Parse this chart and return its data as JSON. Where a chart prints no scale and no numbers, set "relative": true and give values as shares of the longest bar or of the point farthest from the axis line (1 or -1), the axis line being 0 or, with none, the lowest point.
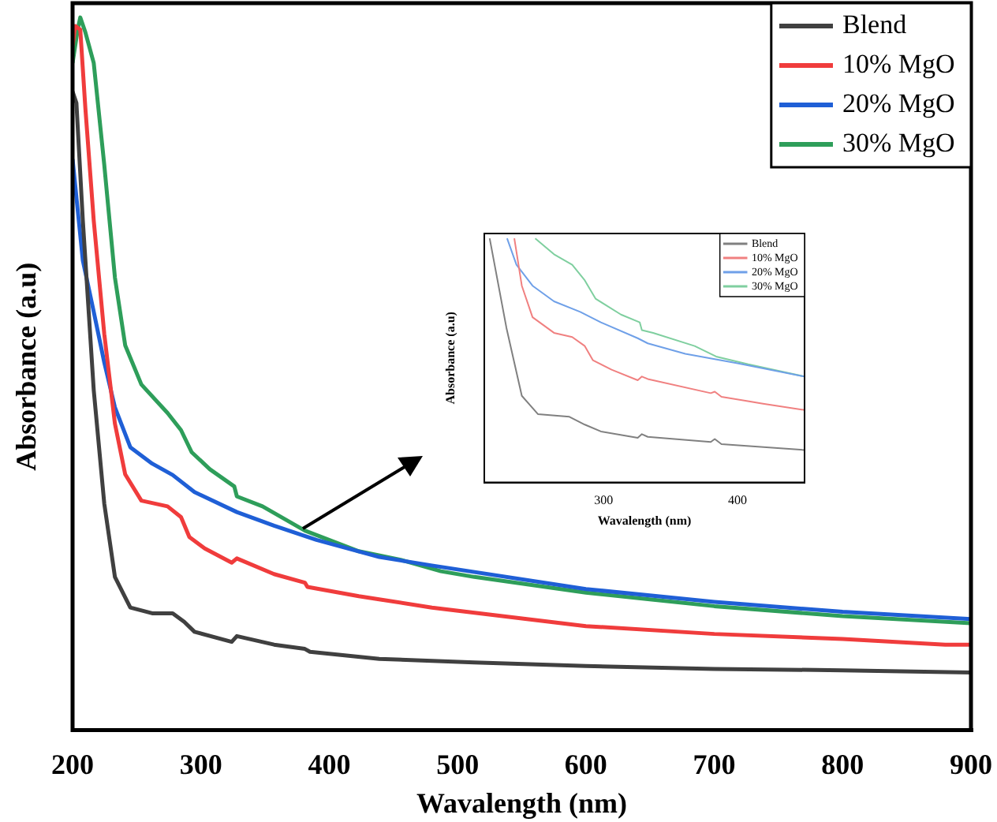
{
  "chart_data": [
    {
      "type": "line",
      "xlabel": "Wavalength (nm)",
      "ylabel": "Absorbance (a.u)",
      "relative": true,
      "xlim": [
        200,
        900
      ],
      "xticks": [
        200,
        300,
        400,
        500,
        600,
        700,
        800,
        900
      ],
      "tick_labels": "x",
      "legend": "top right",
      "marker": "none",
      "line_style": "solid",
      "series": [
        {
          "name": "Blend",
          "color": "#404040",
          "x": [
            200,
            203,
            208,
            216.5,
            224.7,
            233,
            245,
            262,
            278,
            287,
            295,
            324,
            328,
            357,
            381,
            385,
            439,
            513,
            600,
            700,
            800,
            900
          ],
          "values": [
            0.896,
            0.88,
            0.715,
            0.477,
            0.318,
            0.215,
            0.172,
            0.164,
            0.164,
            0.152,
            0.138,
            0.124,
            0.132,
            0.12,
            0.114,
            0.11,
            0.1,
            0.095,
            0.09,
            0.086,
            0.084,
            0.081
          ]
        },
        {
          "name": "10% MgO",
          "color": "#f03c3c",
          "x": [
            200,
            202,
            206,
            210,
            216.5,
            224.7,
            233,
            241,
            253.6,
            274,
            284.5,
            291,
            303,
            324,
            328,
            357,
            381,
            383,
            423,
            480,
            600,
            700,
            800,
            880,
            900
          ],
          "values": [
            0.96,
            0.988,
            0.983,
            0.872,
            0.715,
            0.556,
            0.43,
            0.359,
            0.322,
            0.314,
            0.299,
            0.271,
            0.255,
            0.235,
            0.241,
            0.219,
            0.207,
            0.201,
            0.188,
            0.172,
            0.146,
            0.135,
            0.128,
            0.12,
            0.12
          ]
        },
        {
          "name": "20% MgO",
          "color": "#1f5fd6",
          "x": [
            200,
            204,
            208,
            216.5,
            224.7,
            233,
            245,
            262,
            278,
            295,
            328,
            357,
            390,
            439,
            480,
            600,
            700,
            800,
            900
          ],
          "values": [
            0.801,
            0.73,
            0.659,
            0.587,
            0.516,
            0.453,
            0.397,
            0.374,
            0.358,
            0.334,
            0.306,
            0.287,
            0.267,
            0.243,
            0.231,
            0.198,
            0.18,
            0.166,
            0.156
          ]
        },
        {
          "name": "30% MgO",
          "color": "#2e9e5a",
          "x": [
            200,
            204,
            206,
            210,
            216.5,
            224.7,
            233,
            241,
            253.6,
            274,
            284.5,
            292.8,
            307,
            326,
            328,
            348,
            381,
            423,
            455.7,
            487,
            513,
            600,
            700,
            800,
            900
          ],
          "values": [
            0.936,
            0.983,
            1.0,
            0.979,
            0.936,
            0.793,
            0.635,
            0.54,
            0.485,
            0.445,
            0.421,
            0.39,
            0.366,
            0.342,
            0.328,
            0.314,
            0.28,
            0.251,
            0.239,
            0.223,
            0.215,
            0.193,
            0.174,
            0.16,
            0.15
          ]
        }
      ]
    },
    {
      "type": "line",
      "xlabel": "Wavalength (nm)",
      "ylabel": "Absorbance (a.u)",
      "relative": true,
      "xlim": [
        211,
        450
      ],
      "xticks": [
        300,
        400
      ],
      "tick_labels": "x",
      "legend": "top right",
      "marker": "none",
      "line_style": "solid",
      "series": [
        {
          "name": "Blend",
          "color": "#808080",
          "x": [
            215,
            227.5,
            239,
            251,
            274.5,
            286,
            298,
            325.5,
            328.6,
            333,
            380,
            383,
            388,
            450
          ],
          "values": [
            1.0,
            0.634,
            0.355,
            0.28,
            0.269,
            0.237,
            0.209,
            0.183,
            0.198,
            0.187,
            0.166,
            0.178,
            0.157,
            0.133
          ]
        },
        {
          "name": "10% MgO",
          "color": "#f08080",
          "x": [
            233.4,
            239,
            247,
            263,
            276.6,
            286,
            292,
            306,
            325.5,
            328.6,
            333,
            380,
            383,
            388,
            419,
            450
          ],
          "values": [
            1.0,
            0.806,
            0.677,
            0.613,
            0.596,
            0.559,
            0.501,
            0.462,
            0.419,
            0.434,
            0.424,
            0.366,
            0.372,
            0.351,
            0.323,
            0.297
          ]
        },
        {
          "name": "20% MgO",
          "color": "#6fa0e8",
          "x": [
            228,
            235,
            247,
            263,
            282.6,
            298,
            325.5,
            333,
            361,
            400,
            450
          ],
          "values": [
            1.0,
            0.892,
            0.806,
            0.742,
            0.699,
            0.656,
            0.591,
            0.57,
            0.527,
            0.488,
            0.434
          ]
        },
        {
          "name": "30% MgO",
          "color": "#7fcf9f",
          "x": [
            249,
            263,
            276.6,
            286,
            294,
            313,
            327,
            328.6,
            337,
            368,
            384,
            408,
            450
          ],
          "values": [
            1.0,
            0.935,
            0.892,
            0.828,
            0.753,
            0.688,
            0.656,
            0.624,
            0.613,
            0.559,
            0.516,
            0.484,
            0.434
          ]
        }
      ]
    }
  ]
}
